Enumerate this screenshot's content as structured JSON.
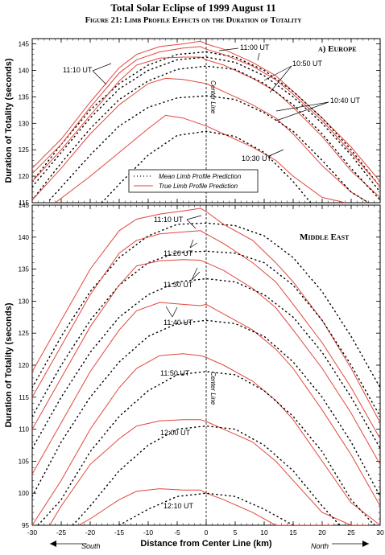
{
  "title": "Total Solar Eclipse of 1999 August 11",
  "subtitle": "Figure 21: Limb Profile Effects on the Duration of Totality",
  "colors": {
    "mean": "#000000",
    "true": "#e0473c",
    "frame": "#000000"
  },
  "chart_data": [
    {
      "type": "line",
      "panel_label": "a) Europe",
      "ylabel": "Duration of Totality (seconds)",
      "xlim": [
        -30,
        30
      ],
      "ylim": [
        115,
        146
      ],
      "yticks": [
        115,
        120,
        125,
        130,
        135,
        140,
        145
      ],
      "center_line_label": "Center Line",
      "legend": {
        "mean": "Mean Limb Profile Prediction",
        "true": "True Limb Profile Prediction",
        "position": "bottom-center"
      },
      "series": [
        {
          "time": "11:00 UT",
          "kind": "true",
          "x": [
            -30,
            -25,
            -20,
            -15,
            -12,
            -8,
            -4,
            -1,
            0,
            3,
            8,
            12,
            15,
            20,
            25,
            30
          ],
          "y": [
            121.5,
            127,
            134,
            140.5,
            143,
            144.5,
            145,
            145.5,
            145,
            144,
            141.5,
            139,
            136,
            131,
            125.5,
            119
          ]
        },
        {
          "time": "11:00 UT",
          "kind": "mean",
          "x": [
            -30,
            -25,
            -20,
            -15,
            -10,
            -5,
            0,
            5,
            10,
            15,
            20,
            25,
            30
          ],
          "y": [
            119,
            126,
            132.5,
            137.5,
            141,
            143,
            143.5,
            142.5,
            140,
            136,
            131,
            125,
            118
          ]
        },
        {
          "time": "10:50 UT",
          "kind": "true",
          "x": [
            -30,
            -25,
            -20,
            -15,
            -12,
            -8,
            -4,
            -1,
            0,
            3,
            8,
            12,
            15,
            20,
            25,
            30
          ],
          "y": [
            120.5,
            126,
            133,
            139.5,
            142,
            143.5,
            144.2,
            144.5,
            144,
            143,
            140.8,
            138.2,
            135.5,
            130.5,
            124.5,
            118
          ]
        },
        {
          "time": "10:50 UT",
          "kind": "mean",
          "x": [
            -30,
            -25,
            -20,
            -15,
            -10,
            -5,
            0,
            5,
            10,
            15,
            20,
            25,
            30
          ],
          "y": [
            118,
            124.5,
            131,
            136.5,
            140,
            142,
            142.5,
            141.5,
            139,
            135,
            130,
            124,
            117
          ]
        },
        {
          "time": "11:10 UT",
          "kind": "true",
          "x": [
            -30,
            -25,
            -20,
            -15,
            -12,
            -8,
            -4,
            -1,
            0,
            3,
            8,
            12,
            15,
            20,
            25,
            30
          ],
          "y": [
            119,
            125,
            131.5,
            138,
            141,
            142.3,
            142.5,
            142.5,
            142,
            141,
            138.5,
            136,
            133,
            127.5,
            121,
            116
          ]
        },
        {
          "time": "11:10 UT",
          "kind": "mean",
          "x": [
            -30,
            -25,
            -20,
            -15,
            -10,
            -5,
            0,
            5,
            10,
            15,
            20,
            25,
            30
          ],
          "y": [
            115.5,
            122.5,
            129,
            134.5,
            138,
            140.2,
            140.8,
            140.2,
            137.5,
            133.5,
            128,
            121.5,
            115.5
          ]
        },
        {
          "time": "10:40 UT",
          "kind": "true",
          "x": [
            -30,
            -25,
            -20,
            -15,
            -10,
            -7,
            -4,
            0,
            3,
            8,
            12,
            15,
            20,
            25,
            28
          ],
          "y": [
            115.5,
            121.5,
            128,
            133.5,
            137.5,
            138.5,
            138.3,
            137.5,
            136,
            133.5,
            131,
            128,
            122,
            117,
            115
          ]
        },
        {
          "time": "10:40 UT",
          "kind": "mean",
          "x": [
            -27,
            -20,
            -15,
            -10,
            -5,
            0,
            5,
            10,
            15,
            20,
            25,
            28
          ],
          "y": [
            115.5,
            124,
            129.5,
            133,
            134.8,
            135.2,
            134.5,
            132,
            128.5,
            123,
            117,
            115
          ]
        },
        {
          "time": "10:30 UT",
          "kind": "true",
          "x": [
            -26,
            -20,
            -15,
            -10,
            -7,
            -4,
            0,
            3,
            8,
            12,
            15,
            20,
            24
          ],
          "y": [
            115,
            120,
            124.5,
            129,
            131.5,
            131,
            129.5,
            128,
            125.5,
            123,
            120,
            116,
            115
          ]
        },
        {
          "time": "10:30 UT",
          "kind": "mean",
          "x": [
            -18,
            -15,
            -10,
            -5,
            0,
            5,
            10,
            15,
            18
          ],
          "y": [
            115,
            118.5,
            124,
            127.7,
            128.5,
            127.5,
            124.5,
            119,
            115
          ]
        }
      ],
      "annotations": [
        "11:00 UT",
        "11:10 UT",
        "10:50 UT",
        "10:40 UT",
        "10:30 UT"
      ]
    },
    {
      "type": "line",
      "panel_label": "Middle East",
      "ylabel": "Duration of Totality (seconds)",
      "xlabel": "Distance from Center Line (km)",
      "xlim": [
        -30,
        30
      ],
      "ylim": [
        95,
        145
      ],
      "xticks": [
        -30,
        -25,
        -20,
        -15,
        -10,
        -5,
        0,
        5,
        10,
        15,
        20,
        25,
        30
      ],
      "yticks": [
        95,
        100,
        105,
        110,
        115,
        120,
        125,
        130,
        135,
        140,
        145
      ],
      "center_line_label": "Center Line",
      "direction_labels": {
        "left": "South",
        "right": "North"
      },
      "series": [
        {
          "time": "11:10 UT",
          "kind": "true",
          "x": [
            -30,
            -25,
            -20,
            -15,
            -12,
            -8,
            -4,
            -1,
            0,
            3,
            8,
            12,
            15,
            20,
            25,
            30
          ],
          "y": [
            119,
            127,
            135,
            141,
            142.8,
            143.6,
            144.1,
            144.5,
            144,
            142,
            139.5,
            136,
            133,
            127,
            119.5,
            111
          ]
        },
        {
          "time": "11:10 UT",
          "kind": "mean",
          "x": [
            -30,
            -25,
            -20,
            -15,
            -10,
            -5,
            0,
            5,
            10,
            15,
            20,
            25,
            30
          ],
          "y": [
            116.5,
            124.5,
            131.5,
            136.8,
            140.2,
            142,
            142.2,
            141.8,
            140.2,
            136.8,
            131.5,
            124.5,
            116.5
          ]
        },
        {
          "time": "11:20 UT",
          "kind": "true",
          "x": [
            -30,
            -25,
            -20,
            -15,
            -12,
            -8,
            -4,
            -1,
            0,
            3,
            8,
            12,
            15,
            20,
            25,
            30
          ],
          "y": [
            115,
            123,
            131,
            137.5,
            139.5,
            140.5,
            140.8,
            141,
            140.5,
            139,
            136,
            133,
            129.5,
            123.5,
            116.5,
            108.5
          ]
        },
        {
          "time": "11:20 UT",
          "kind": "mean",
          "x": [
            -30,
            -25,
            -20,
            -15,
            -10,
            -5,
            0,
            5,
            10,
            15,
            20,
            25,
            30
          ],
          "y": [
            112,
            120,
            127,
            132.5,
            136,
            137.6,
            137.8,
            137.5,
            136,
            132.5,
            127,
            120,
            112
          ]
        },
        {
          "time": "11:30 UT",
          "kind": "true",
          "x": [
            -30,
            -25,
            -20,
            -15,
            -12,
            -8,
            -4,
            -1,
            0,
            3,
            8,
            12,
            15,
            20,
            25,
            30
          ],
          "y": [
            110,
            118,
            126,
            132.5,
            135.5,
            136.3,
            136.5,
            136.4,
            136,
            134.8,
            132,
            129,
            125.5,
            119.5,
            112.5,
            104.5
          ]
        },
        {
          "time": "11:30 UT",
          "kind": "mean",
          "x": [
            -30,
            -25,
            -20,
            -15,
            -10,
            -5,
            0,
            5,
            10,
            15,
            20,
            25,
            30
          ],
          "y": [
            107,
            115,
            122,
            127.5,
            131,
            133,
            133.5,
            133,
            131,
            127.5,
            122,
            115,
            107
          ]
        },
        {
          "time": "11:40 UT",
          "kind": "true",
          "x": [
            -30,
            -25,
            -20,
            -15,
            -12,
            -8,
            -4,
            -1,
            0,
            3,
            8,
            12,
            15,
            20,
            25,
            30
          ],
          "y": [
            103,
            111,
            119,
            125.5,
            128.5,
            129.8,
            129.5,
            129.3,
            129.5,
            128,
            125.5,
            122.5,
            119.5,
            113,
            106,
            98
          ]
        },
        {
          "time": "11:40 UT",
          "kind": "mean",
          "x": [
            -30,
            -25,
            -20,
            -15,
            -10,
            -5,
            0,
            5,
            10,
            15,
            20,
            25,
            30
          ],
          "y": [
            99.5,
            108,
            115,
            120.5,
            124.5,
            126.5,
            127,
            126.5,
            124.5,
            120.5,
            115,
            108,
            99.5
          ]
        },
        {
          "time": "11:50 UT",
          "kind": "true",
          "x": [
            -30,
            -25,
            -20,
            -15,
            -12,
            -8,
            -4,
            -1,
            0,
            3,
            8,
            12,
            15,
            20,
            25,
            30
          ],
          "y": [
            95,
            102,
            110,
            116.5,
            119.5,
            121.5,
            121.8,
            121.5,
            121.2,
            120,
            117.5,
            114.5,
            111.5,
            105,
            98.5,
            95
          ]
        },
        {
          "time": "11:50 UT",
          "kind": "mean",
          "x": [
            -29,
            -25,
            -20,
            -15,
            -10,
            -5,
            0,
            5,
            10,
            15,
            20,
            25,
            29
          ],
          "y": [
            95,
            99,
            106.5,
            112,
            116,
            118.5,
            119,
            118.5,
            116,
            112,
            106.5,
            99,
            95
          ]
        },
        {
          "time": "12:00 UT",
          "kind": "true",
          "x": [
            -27,
            -25,
            -20,
            -15,
            -12,
            -8,
            -4,
            -1,
            0,
            3,
            8,
            12,
            15,
            20,
            25,
            28
          ],
          "y": [
            95,
            98,
            104.5,
            108.5,
            110.5,
            111.3,
            111.5,
            111.5,
            111.2,
            110,
            108,
            105,
            102,
            97,
            95,
            95
          ]
        },
        {
          "time": "12:00 UT",
          "kind": "mean",
          "x": [
            -23,
            -20,
            -15,
            -10,
            -5,
            0,
            5,
            10,
            15,
            20,
            23
          ],
          "y": [
            95,
            98,
            103.5,
            107.5,
            110,
            110.5,
            110,
            107.5,
            103.5,
            98,
            95
          ]
        },
        {
          "time": "12:10 UT",
          "kind": "true",
          "x": [
            -22,
            -20,
            -15,
            -12,
            -8,
            -4,
            -1,
            0,
            3,
            8,
            12,
            15,
            20,
            22
          ],
          "y": [
            95,
            96,
            99,
            100.3,
            100.7,
            100.5,
            100.5,
            100,
            99,
            97,
            95,
            95,
            95,
            95
          ]
        },
        {
          "time": "12:10 UT",
          "kind": "mean",
          "x": [
            -15,
            -10,
            -5,
            0,
            5,
            10,
            15
          ],
          "y": [
            95,
            97.5,
            99.5,
            100,
            99.5,
            97.5,
            95
          ]
        }
      ],
      "annotations": [
        "11:10 UT",
        "11:20 UT",
        "11:30 UT",
        "11:40 UT",
        "11:50 UT",
        "12:00 UT",
        "12:10 UT"
      ]
    }
  ]
}
